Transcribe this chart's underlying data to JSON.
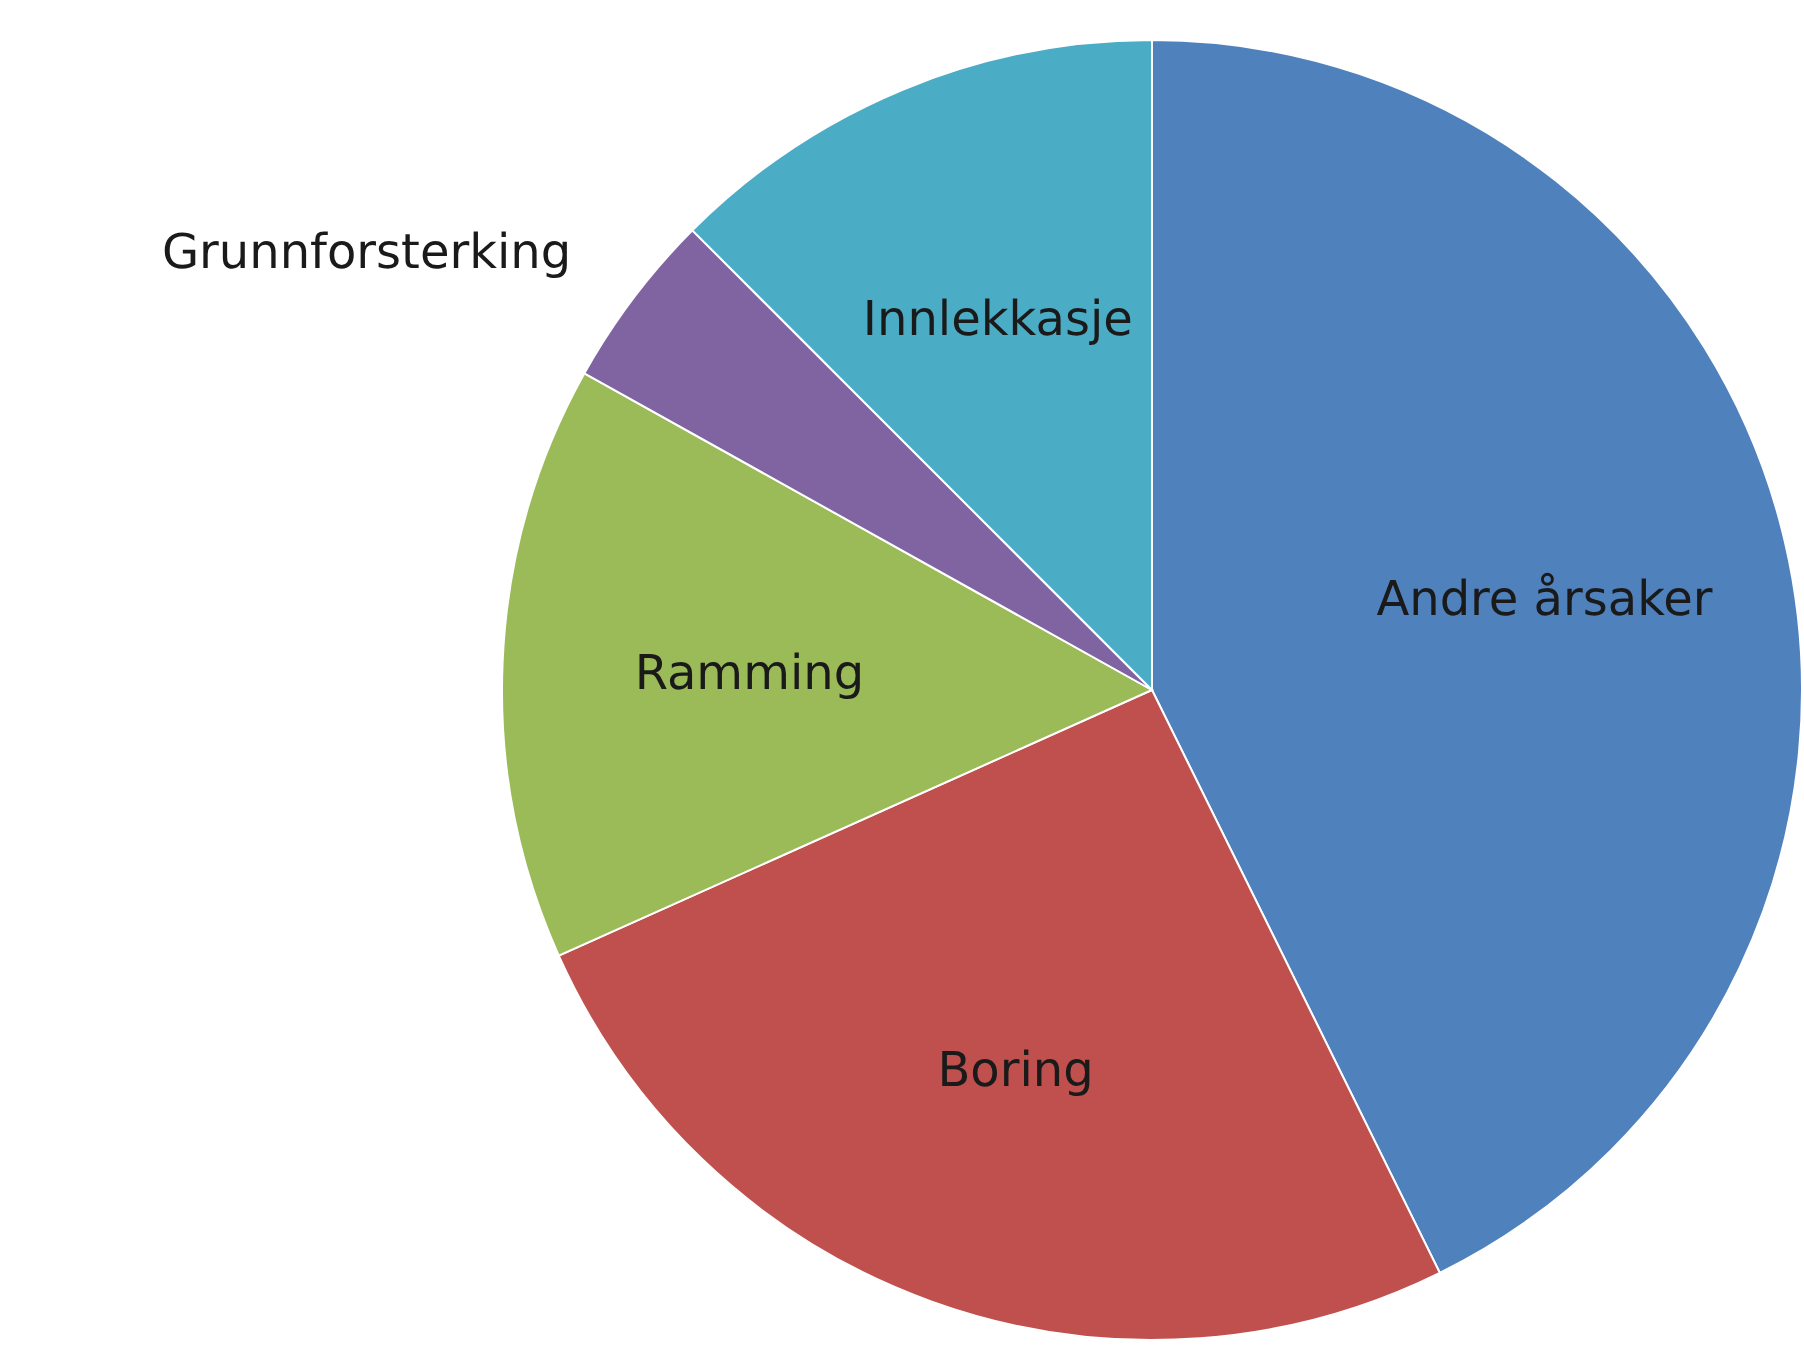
{
  "chart_data": {
    "type": "pie",
    "categories": [
      "Andre årsaker",
      "Boring",
      "Ramming",
      "Grunnforsterking",
      "Innlekkasje"
    ],
    "values": [
      42.7,
      25.6,
      14.8,
      4.4,
      12.5
    ],
    "colors": [
      "#4f81bd",
      "#c0504d",
      "#9bbb59",
      "#8064a2",
      "#4bacc6"
    ]
  }
}
